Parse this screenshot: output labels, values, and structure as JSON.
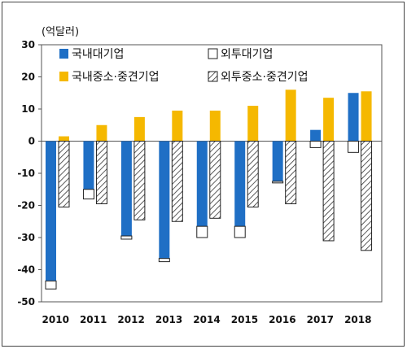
{
  "chart_data": {
    "type": "bar",
    "unit_label": "(억달러)",
    "categories": [
      "2010",
      "2011",
      "2012",
      "2013",
      "2014",
      "2015",
      "2016",
      "2017",
      "2018"
    ],
    "ylim": [
      -50,
      30
    ],
    "yticks": [
      30,
      20,
      10,
      0,
      -10,
      -20,
      -30,
      -40,
      -50
    ],
    "grid": false,
    "legend_position": "top",
    "series": [
      {
        "name": "국내대기업",
        "style": "solid",
        "color": "#1f6fc5",
        "values": [
          -43.5,
          -15,
          -29.5,
          -36.5,
          -26.5,
          -26.5,
          -12.5,
          3.5,
          15
        ]
      },
      {
        "name": "외투대기업",
        "style": "open",
        "color": "#ffffff",
        "values": [
          -2.5,
          -3,
          -1,
          -1,
          -3.5,
          -3.5,
          -0.5,
          -2,
          -3.5
        ]
      },
      {
        "name": "국내중소·중견기업",
        "style": "solid",
        "color": "#f5b800",
        "values": [
          1.5,
          5,
          7.5,
          9.5,
          9.5,
          11,
          16,
          13.5,
          15.5
        ]
      },
      {
        "name": "외투중소·중견기업",
        "style": "hatched",
        "color": "#ffffff",
        "values": [
          -20.5,
          -19.5,
          -24.5,
          -25,
          -24,
          -20.5,
          -19.5,
          -31,
          -34
        ]
      }
    ]
  }
}
